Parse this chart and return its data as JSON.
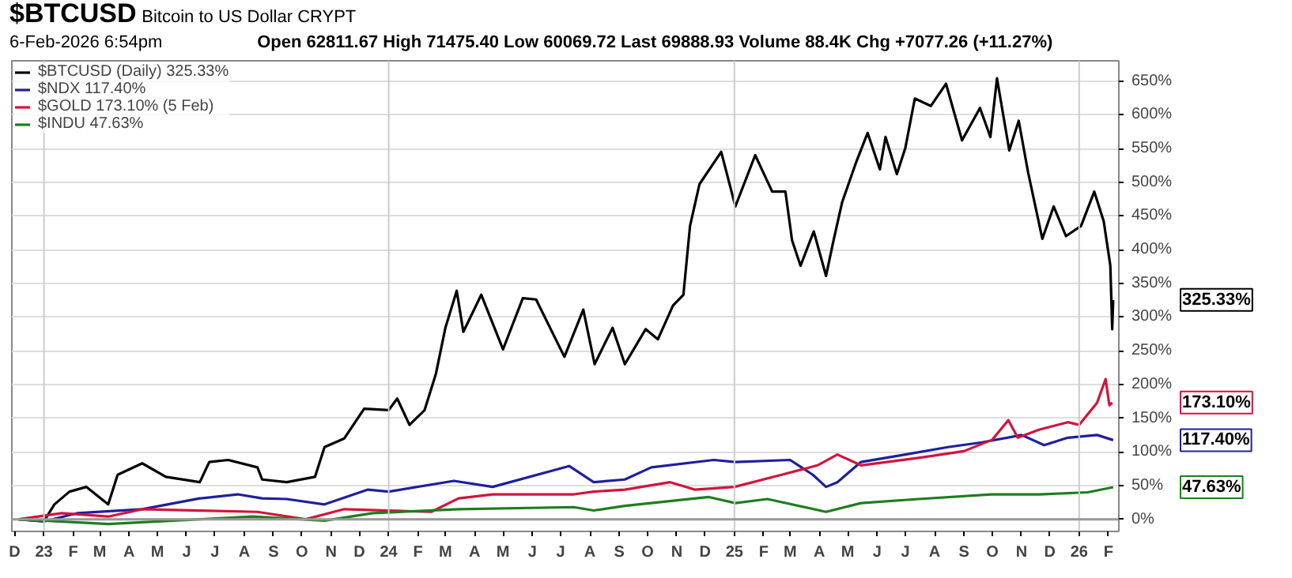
{
  "chart_data": {
    "type": "line",
    "title": "$BTCUSD",
    "subtitle": "Bitcoin to US Dollar CRYPT",
    "annotations": [
      "6-Feb-2026 6:54pm",
      "Open 62811.67 High 71475.40 Low 60069.72 Last 69888.93 Volume 88.4K Chg +7077.26 (+11.27%)",
      "325.33%",
      "117.40%",
      "173.10%",
      "47.63%"
    ],
    "series": [
      {
        "name": "$BTCUSD (Daily) 325.33%",
        "color": "#000000",
        "x": [
          "2022-12-05",
          "2023-01-01",
          "2023-01-12",
          "2023-01-28",
          "2023-02-15",
          "2023-03-10",
          "2023-03-20",
          "2023-04-15",
          "2023-05-10",
          "2023-06-15",
          "2023-06-25",
          "2023-07-15",
          "2023-08-15",
          "2023-08-20",
          "2023-09-15",
          "2023-10-15",
          "2023-10-25",
          "2023-11-15",
          "2023-12-06",
          "2024-01-01",
          "2024-01-10",
          "2024-01-23",
          "2024-02-08",
          "2024-02-20",
          "2024-03-01",
          "2024-03-13",
          "2024-03-20",
          "2024-04-08",
          "2024-05-01",
          "2024-05-22",
          "2024-06-05",
          "2024-07-05",
          "2024-07-25",
          "2024-08-06",
          "2024-08-25",
          "2024-09-07",
          "2024-09-29",
          "2024-10-12",
          "2024-10-28",
          "2024-11-08",
          "2024-11-15",
          "2024-11-25",
          "2024-12-18",
          "2025-01-02",
          "2025-01-23",
          "2025-02-10",
          "2025-02-24",
          "2025-03-03",
          "2025-03-12",
          "2025-03-26",
          "2025-04-08",
          "2025-04-16",
          "2025-04-25",
          "2025-05-10",
          "2025-05-22",
          "2025-06-04",
          "2025-06-10",
          "2025-06-22",
          "2025-07-01",
          "2025-07-11",
          "2025-07-28",
          "2025-08-13",
          "2025-08-30",
          "2025-09-18",
          "2025-09-29",
          "2025-10-06",
          "2025-10-19",
          "2025-10-29",
          "2025-11-08",
          "2025-11-23",
          "2025-12-05",
          "2025-12-18",
          "2026-01-03",
          "2026-01-17",
          "2026-01-27",
          "2026-02-03",
          "2026-02-05",
          "2026-02-06"
        ],
        "values": [
          0,
          -3,
          22,
          41,
          48,
          22,
          66,
          83,
          63,
          55,
          85,
          88,
          77,
          59,
          55,
          63,
          107,
          120,
          164,
          162,
          179,
          140,
          162,
          216,
          284,
          339,
          278,
          333,
          252,
          328,
          326,
          241,
          311,
          230,
          284,
          230,
          282,
          267,
          317,
          333,
          435,
          497,
          545,
          464,
          540,
          486,
          486,
          414,
          376,
          427,
          361,
          414,
          470,
          530,
          573,
          519,
          567,
          512,
          551,
          624,
          613,
          646,
          562,
          610,
          567,
          654,
          547,
          591,
          514,
          416,
          464,
          420,
          435,
          486,
          442,
          376,
          282,
          325.33
        ]
      },
      {
        "name": "$NDX 117.40%",
        "color": "#1f1f9e",
        "x": [
          "2022-12-05",
          "2023-01-01",
          "2023-02-05",
          "2023-04-15",
          "2023-06-15",
          "2023-07-25",
          "2023-08-20",
          "2023-09-15",
          "2023-10-25",
          "2023-12-10",
          "2024-01-01",
          "2024-03-10",
          "2024-04-20",
          "2024-07-10",
          "2024-08-05",
          "2024-09-07",
          "2024-10-05",
          "2024-12-10",
          "2025-01-02",
          "2025-03-01",
          "2025-03-25",
          "2025-04-08",
          "2025-04-20",
          "2025-05-15",
          "2025-07-01",
          "2025-08-15",
          "2025-09-20",
          "2025-11-01",
          "2025-11-25",
          "2025-12-20",
          "2026-01-20",
          "2026-02-06"
        ],
        "values": [
          0,
          -3,
          9,
          15,
          31,
          37,
          31,
          30,
          22,
          44,
          41,
          57,
          48,
          79,
          55,
          59,
          77,
          88,
          85,
          88,
          66,
          48,
          55,
          85,
          96,
          107,
          114,
          125,
          110,
          121,
          125,
          117.4
        ]
      },
      {
        "name": "$GOLD 173.10% (5 Feb)",
        "color": "#d2143c",
        "x": [
          "2022-12-05",
          "2023-01-20",
          "2023-03-10",
          "2023-04-15",
          "2023-06-15",
          "2023-08-15",
          "2023-10-05",
          "2023-11-15",
          "2024-01-01",
          "2024-02-15",
          "2024-03-15",
          "2024-04-20",
          "2024-07-15",
          "2024-08-05",
          "2024-09-07",
          "2024-10-25",
          "2024-11-20",
          "2025-01-01",
          "2025-02-20",
          "2025-03-30",
          "2025-04-20",
          "2025-05-15",
          "2025-07-15",
          "2025-09-01",
          "2025-10-01",
          "2025-10-18",
          "2025-10-28",
          "2025-11-20",
          "2025-12-20",
          "2026-01-01",
          "2026-01-20",
          "2026-01-29",
          "2026-02-02",
          "2026-02-05"
        ],
        "values": [
          0,
          9,
          4,
          15,
          13,
          11,
          0,
          15,
          13,
          11,
          31,
          37,
          37,
          41,
          44,
          55,
          44,
          48,
          66,
          80,
          96,
          80,
          91,
          101,
          118,
          147,
          121,
          133,
          144,
          140,
          173,
          208,
          169,
          173.1
        ]
      },
      {
        "name": "$INDU 47.63%",
        "color": "#1e7d1e",
        "x": [
          "2022-12-05",
          "2023-03-10",
          "2023-06-15",
          "2023-08-10",
          "2023-10-25",
          "2023-12-15",
          "2024-03-15",
          "2024-07-15",
          "2024-08-05",
          "2024-09-07",
          "2024-12-05",
          "2025-01-02",
          "2025-02-05",
          "2025-04-08",
          "2025-05-15",
          "2025-07-15",
          "2025-09-30",
          "2025-11-20",
          "2026-01-10",
          "2026-02-06"
        ],
        "values": [
          0,
          -7,
          0,
          4,
          -2,
          9,
          15,
          18,
          13,
          20,
          33,
          24,
          30,
          11,
          24,
          30,
          37,
          37,
          40,
          47.63
        ]
      }
    ],
    "xlim": [
      "2022-11-28",
      "2026-02-12"
    ],
    "xticks": [
      {
        "value": "2022-12-01",
        "label": "D"
      },
      {
        "value": "2023-01-01",
        "label": "23"
      },
      {
        "value": "2023-02-01",
        "label": "F"
      },
      {
        "value": "2023-03-01",
        "label": "M"
      },
      {
        "value": "2023-04-01",
        "label": "A"
      },
      {
        "value": "2023-05-01",
        "label": "M"
      },
      {
        "value": "2023-06-01",
        "label": "J"
      },
      {
        "value": "2023-07-01",
        "label": "J"
      },
      {
        "value": "2023-08-01",
        "label": "A"
      },
      {
        "value": "2023-09-01",
        "label": "S"
      },
      {
        "value": "2023-10-01",
        "label": "O"
      },
      {
        "value": "2023-11-01",
        "label": "N"
      },
      {
        "value": "2023-12-01",
        "label": "D"
      },
      {
        "value": "2024-01-01",
        "label": "24"
      },
      {
        "value": "2024-02-01",
        "label": "F"
      },
      {
        "value": "2024-03-01",
        "label": "M"
      },
      {
        "value": "2024-04-01",
        "label": "A"
      },
      {
        "value": "2024-05-01",
        "label": "M"
      },
      {
        "value": "2024-06-01",
        "label": "J"
      },
      {
        "value": "2024-07-01",
        "label": "J"
      },
      {
        "value": "2024-08-01",
        "label": "A"
      },
      {
        "value": "2024-09-01",
        "label": "S"
      },
      {
        "value": "2024-10-01",
        "label": "O"
      },
      {
        "value": "2024-11-01",
        "label": "N"
      },
      {
        "value": "2024-12-01",
        "label": "D"
      },
      {
        "value": "2025-01-01",
        "label": "25"
      },
      {
        "value": "2025-02-01",
        "label": "F"
      },
      {
        "value": "2025-03-01",
        "label": "M"
      },
      {
        "value": "2025-04-01",
        "label": "A"
      },
      {
        "value": "2025-05-01",
        "label": "M"
      },
      {
        "value": "2025-06-01",
        "label": "J"
      },
      {
        "value": "2025-07-01",
        "label": "J"
      },
      {
        "value": "2025-08-01",
        "label": "A"
      },
      {
        "value": "2025-09-01",
        "label": "S"
      },
      {
        "value": "2025-10-01",
        "label": "O"
      },
      {
        "value": "2025-11-01",
        "label": "N"
      },
      {
        "value": "2025-12-01",
        "label": "D"
      },
      {
        "value": "2026-01-01",
        "label": "26"
      },
      {
        "value": "2026-02-01",
        "label": "F"
      }
    ],
    "ylim": [
      -18,
      680
    ],
    "yticks": [
      {
        "value": 0,
        "label": "0%"
      },
      {
        "value": 50,
        "label": "50%"
      },
      {
        "value": 100,
        "label": "100%"
      },
      {
        "value": 150,
        "label": "150%"
      },
      {
        "value": 200,
        "label": "200%"
      },
      {
        "value": 250,
        "label": "250%"
      },
      {
        "value": 300,
        "label": "300%"
      },
      {
        "value": 350,
        "label": "350%"
      },
      {
        "value": 400,
        "label": "400%"
      },
      {
        "value": 450,
        "label": "450%"
      },
      {
        "value": 500,
        "label": "500%"
      },
      {
        "value": 550,
        "label": "550%"
      },
      {
        "value": 600,
        "label": "600%"
      },
      {
        "value": 650,
        "label": "650%"
      }
    ],
    "ref_lines": [
      {
        "axis": "x",
        "value": "2023-01-01",
        "color": "#cccccc"
      },
      {
        "axis": "x",
        "value": "2024-01-01",
        "color": "#cccccc"
      },
      {
        "axis": "x",
        "value": "2025-01-01",
        "color": "#cccccc"
      },
      {
        "axis": "x",
        "value": "2026-01-01",
        "color": "#cccccc"
      },
      {
        "axis": "y",
        "value": 0,
        "color": "#999999"
      }
    ],
    "grid": "y",
    "legend": "top left",
    "marker": "none",
    "line_style": "solid"
  }
}
